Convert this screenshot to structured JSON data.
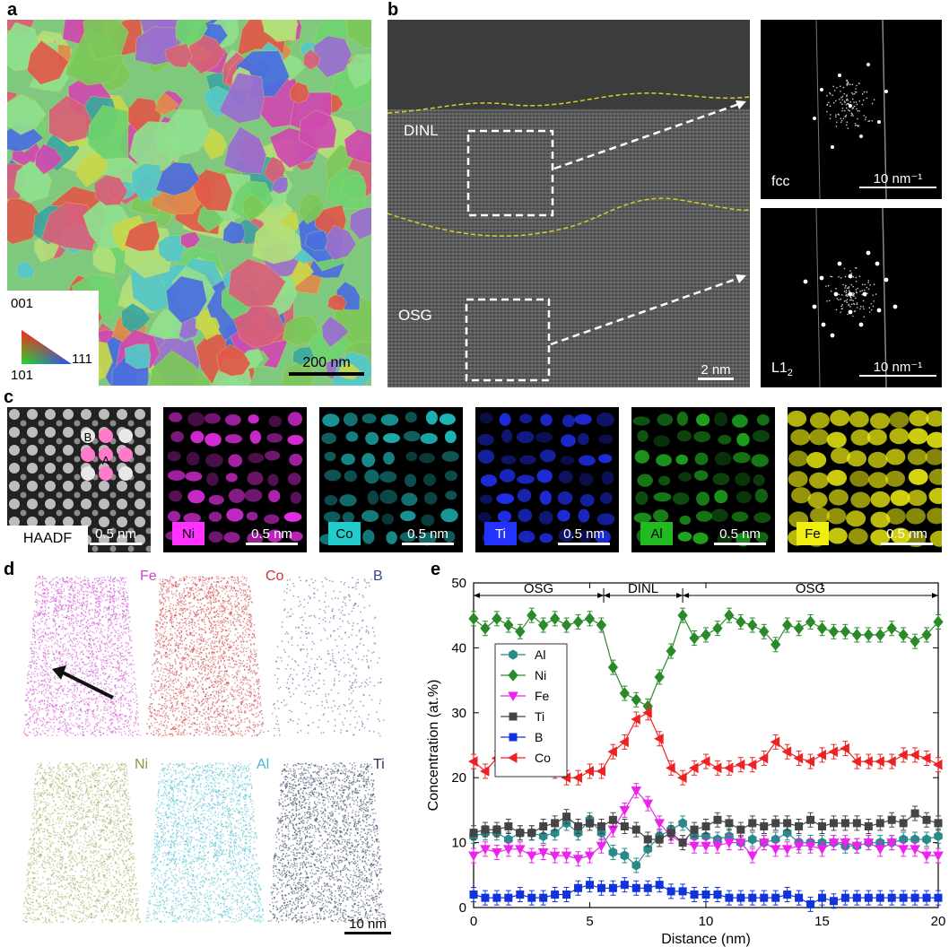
{
  "panels": {
    "a": {
      "letter": "a",
      "ipf": {
        "top": "001",
        "left": "101",
        "right": "111"
      },
      "scalebar": "200 nm"
    },
    "b": {
      "letter": "b",
      "regions": {
        "upper": "DINL",
        "lower": "OSG"
      },
      "scalebar": "2 nm",
      "fft": [
        {
          "phase": "fcc",
          "scalebar": "10 nm⁻¹"
        },
        {
          "phase_main": "L1",
          "phase_sub": "2",
          "scalebar": "10 nm⁻¹"
        }
      ]
    },
    "c": {
      "letter": "c",
      "haadf": {
        "label": "HAADF",
        "site_a": "A",
        "site_b": "B",
        "scalebar": "0.5 nm"
      },
      "maps": [
        {
          "element": "Ni",
          "color": "#ff33ff",
          "scalebar": "0.5 nm"
        },
        {
          "element": "Co",
          "color": "#22cccc",
          "scalebar": "0.5 nm"
        },
        {
          "element": "Ti",
          "color": "#2233ff",
          "scalebar": "0.5 nm"
        },
        {
          "element": "Al",
          "color": "#22bb22",
          "scalebar": "0.5 nm"
        },
        {
          "element": "Fe",
          "color": "#eeee11",
          "scalebar": "0.5 nm"
        }
      ]
    },
    "d": {
      "letter": "d",
      "maps": [
        {
          "element": "Fe",
          "color": "#cc44cc"
        },
        {
          "element": "Co",
          "color": "#cc3333"
        },
        {
          "element": "B",
          "color": "#334488"
        },
        {
          "element": "Ni",
          "color": "#99aa55"
        },
        {
          "element": "Al",
          "color": "#44bbcc"
        },
        {
          "element": "Ti",
          "color": "#223355"
        }
      ],
      "scalebar": "10 nm"
    },
    "e": {
      "letter": "e"
    }
  },
  "chart_data": {
    "type": "line",
    "xlabel": "Distance (nm)",
    "ylabel": "Concentration (at.%)",
    "xlim": [
      0,
      20
    ],
    "ylim": [
      0,
      50
    ],
    "xticks": [
      0,
      5,
      10,
      15,
      20
    ],
    "yticks": [
      0,
      10,
      20,
      30,
      40,
      50
    ],
    "regions": [
      {
        "label": "OSG",
        "x0": 0,
        "x1": 5.6
      },
      {
        "label": "DINL",
        "x0": 5.6,
        "x1": 9
      },
      {
        "label": "OSG",
        "x0": 9,
        "x1": 20
      }
    ],
    "legend": "center-left",
    "x": [
      0,
      0.5,
      1,
      1.5,
      2,
      2.5,
      3,
      3.5,
      4,
      4.5,
      5,
      5.5,
      6,
      6.5,
      7,
      7.5,
      8,
      8.5,
      9,
      9.5,
      10,
      10.5,
      11,
      11.5,
      12,
      12.5,
      13,
      13.5,
      14,
      14.5,
      15,
      15.5,
      16,
      16.5,
      17,
      17.5,
      18,
      18.5,
      19,
      19.5,
      20
    ],
    "series": [
      {
        "name": "Al",
        "color": "#2a8a8a",
        "marker": "hexagon",
        "values": [
          11,
          11.5,
          11.5,
          10.5,
          11.5,
          11.5,
          11,
          11.5,
          13,
          11.5,
          13.5,
          11.5,
          8.5,
          8,
          6.5,
          9,
          11,
          12,
          13,
          11,
          11,
          10.5,
          11,
          10,
          10.5,
          10,
          10.5,
          11.5,
          10,
          10,
          10,
          10,
          9.5,
          9.5,
          10,
          10,
          10,
          10.5,
          10.5,
          10.5,
          11
        ]
      },
      {
        "name": "Ni",
        "color": "#2a8a2a",
        "marker": "diamond",
        "values": [
          44.5,
          43,
          44.5,
          43.5,
          42.5,
          45,
          43.5,
          44.5,
          43.5,
          44,
          44.5,
          43.5,
          37,
          33,
          32,
          31,
          35.5,
          39.5,
          45,
          41.5,
          42,
          43,
          45,
          44,
          43.5,
          42.5,
          40.5,
          43.5,
          43,
          44,
          43,
          42.5,
          42.5,
          42,
          42,
          42,
          43,
          42,
          41,
          42,
          44
        ]
      },
      {
        "name": "Fe",
        "color": "#ee22ee",
        "marker": "triangle-down",
        "values": [
          8,
          9,
          8.5,
          9,
          9,
          8,
          8.5,
          8,
          8,
          7.5,
          8,
          9.5,
          12,
          15,
          18,
          16,
          13,
          11,
          10,
          9.5,
          9.5,
          9.5,
          10,
          10,
          8,
          10,
          9,
          9,
          9.5,
          9.5,
          9,
          10,
          10,
          9.5,
          10,
          9,
          10,
          9,
          9,
          8,
          8
        ]
      },
      {
        "name": "Ti",
        "color": "#444444",
        "marker": "square",
        "values": [
          11.5,
          12,
          12,
          12.5,
          11.5,
          11.5,
          12.5,
          13,
          14,
          12.5,
          13,
          12.5,
          13.5,
          12.5,
          12,
          10.5,
          10.5,
          11.5,
          10,
          12,
          12.5,
          13.5,
          13,
          12,
          13,
          12.5,
          13,
          13,
          12.5,
          13.5,
          12.5,
          13,
          13,
          13,
          12.5,
          13,
          13.5,
          13,
          14.5,
          13.5,
          13
        ]
      },
      {
        "name": "B",
        "color": "#1133dd",
        "marker": "square",
        "values": [
          2,
          1.5,
          1.5,
          1.5,
          2,
          1.5,
          1.5,
          2,
          2,
          3,
          3.5,
          3,
          3,
          3.5,
          3,
          3,
          3.5,
          2.5,
          2.5,
          2,
          2,
          2,
          1.5,
          1.5,
          1.5,
          1.5,
          1.5,
          2,
          1.5,
          0.5,
          1.5,
          1,
          1.5,
          1.5,
          1.5,
          1.5,
          1.5,
          1.5,
          1.5,
          1.5,
          1.5
        ]
      },
      {
        "name": "Co",
        "color": "#ee2222",
        "marker": "triangle-left",
        "values": [
          22.5,
          21,
          23,
          23,
          21.5,
          22.5,
          21.5,
          21,
          20,
          20,
          21,
          21,
          24,
          25.5,
          29,
          30,
          26,
          21.5,
          20,
          21.5,
          22.5,
          21.5,
          21.5,
          22,
          22,
          23,
          25.5,
          24,
          23,
          22.5,
          23.5,
          24,
          24.5,
          22.5,
          22.5,
          22.5,
          22.5,
          23.5,
          23.5,
          23,
          22
        ]
      }
    ]
  }
}
